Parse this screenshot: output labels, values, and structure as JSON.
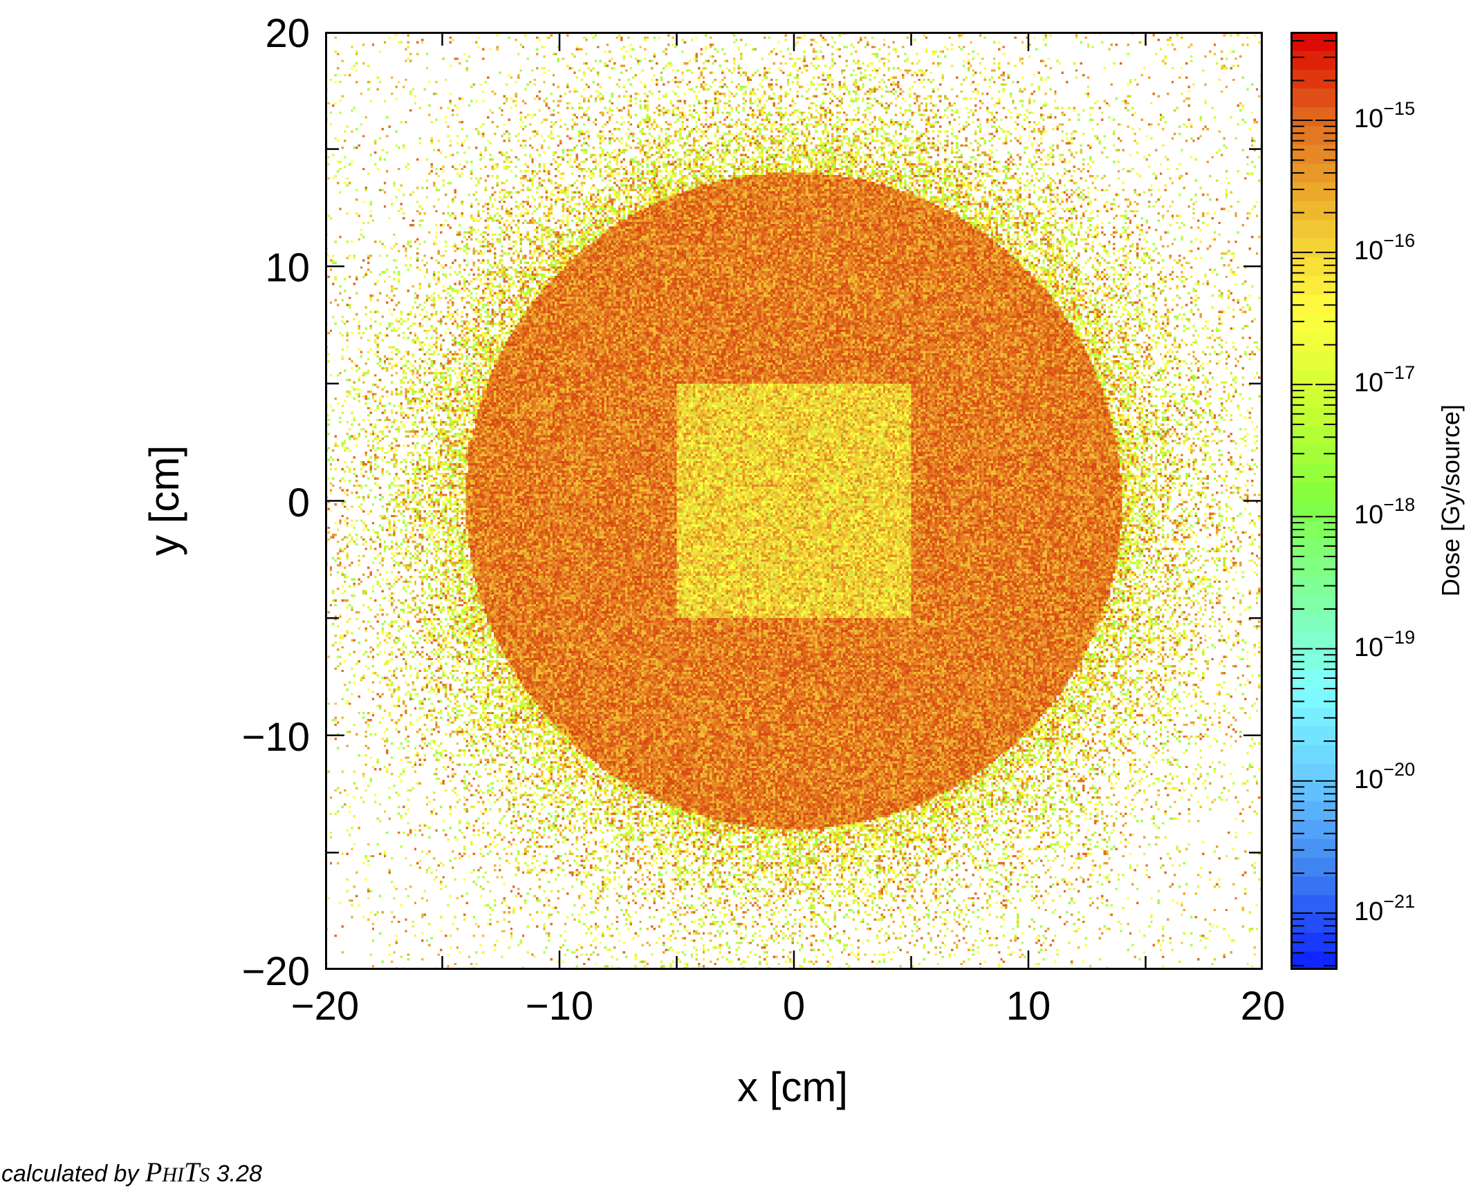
{
  "chart_data": {
    "type": "heatmap",
    "xlabel": "x [cm]",
    "ylabel": "y [cm]",
    "xlim": [
      -20,
      20
    ],
    "ylim": [
      -20,
      20
    ],
    "x_ticks": [
      "−20",
      "−10",
      "0",
      "10",
      "20"
    ],
    "x_tick_values": [
      -20,
      -10,
      0,
      10,
      20
    ],
    "y_ticks": [
      "20",
      "10",
      "0",
      "−10",
      "−20"
    ],
    "y_tick_values": [
      20,
      10,
      0,
      -10,
      -20
    ],
    "colorbar": {
      "label": "Dose [Gy/source]",
      "scale": "log",
      "log10_range": [
        -21.43,
        -14.33
      ],
      "tick_exponents": [
        "−15",
        "−16",
        "−17",
        "−18",
        "−19",
        "−20",
        "−21"
      ],
      "tick_log10_values": [
        -15,
        -16,
        -17,
        -18,
        -19,
        -20,
        -21
      ],
      "tick_base": "10",
      "colormap": [
        "#0a1eff",
        "#3c7cf0",
        "#66c8ff",
        "#80ffff",
        "#80ffa0",
        "#80ff40",
        "#c8ff30",
        "#ffff40",
        "#f0c030",
        "#e07020",
        "#dd0000"
      ]
    },
    "regions": [
      {
        "shape": "circle",
        "center": [
          0,
          0
        ],
        "radius_cm": 14,
        "log10_dose_approx": -15.2
      },
      {
        "shape": "square",
        "x_range": [
          -5,
          5
        ],
        "y_range": [
          -5,
          5
        ],
        "log10_dose_approx": -15.9
      },
      {
        "shape": "outside",
        "log10_dose_approx": -16.5,
        "note_sparse": true
      }
    ]
  },
  "footer": {
    "prefix": "calculated by",
    "code_P": "P",
    "code_HI": "HI",
    "code_T": "T",
    "code_S": "S",
    "version": "3.28"
  }
}
